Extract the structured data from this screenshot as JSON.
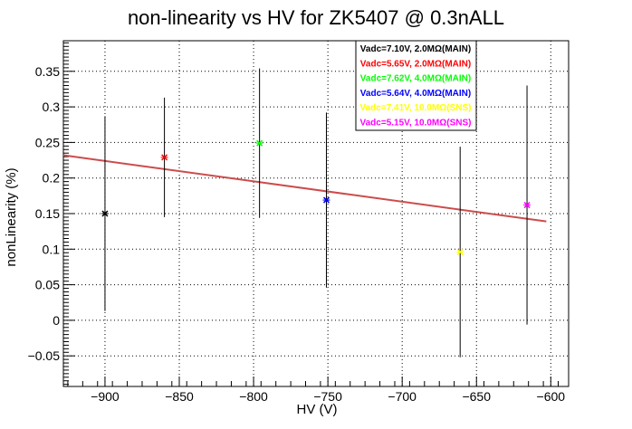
{
  "chart_data": {
    "type": "scatter",
    "title": "non-linearity vs HV for ZK5407 @ 0.3nALL",
    "xlabel": "HV (V)",
    "ylabel": "nonLinearity (%)",
    "xlim": [
      -928,
      -588
    ],
    "ylim": [
      -0.093,
      0.393
    ],
    "xticks": [
      -900,
      -850,
      -800,
      -750,
      -700,
      -650,
      -600
    ],
    "xtick_labels": [
      "−900",
      "−850",
      "−800",
      "−750",
      "−700",
      "−650",
      "−600"
    ],
    "yticks": [
      -0.05,
      0,
      0.05,
      0.1,
      0.15,
      0.2,
      0.25,
      0.3,
      0.35
    ],
    "ytick_labels": [
      "−0.05",
      "0",
      "0.05",
      "0.1",
      "0.15",
      "0.2",
      "0.25",
      "0.3",
      "0.35"
    ],
    "grid": true,
    "legend_position": "top-center",
    "series": [
      {
        "name": "Vadc=7.10V, 2.0MΩ(MAIN)",
        "color": "#000000",
        "x": -900,
        "y": 0.15,
        "err": 0.137
      },
      {
        "name": "Vadc=5.65V, 2.0MΩ(MAIN)",
        "color": "#ff0000",
        "x": -860,
        "y": 0.229,
        "err": 0.084
      },
      {
        "name": "Vadc=7.62V, 4.0MΩ(MAIN)",
        "color": "#00ff00",
        "x": -796,
        "y": 0.249,
        "err": 0.105
      },
      {
        "name": "Vadc=5.64V, 4.0MΩ(MAIN)",
        "color": "#0000ff",
        "x": -751,
        "y": 0.169,
        "err": 0.123
      },
      {
        "name": "Vadc=7.41V, 10.0MΩ(SNS)",
        "color": "#ffff00",
        "x": -661,
        "y": 0.096,
        "err": 0.148
      },
      {
        "name": "Vadc=5.15V, 10.0MΩ(SNS)",
        "color": "#ff00ff",
        "x": -616,
        "y": 0.162,
        "err": 0.168
      }
    ],
    "fit_line": {
      "color": "#cc4c4c",
      "x": [
        -928,
        -603
      ],
      "y": [
        0.232,
        0.139
      ]
    }
  }
}
